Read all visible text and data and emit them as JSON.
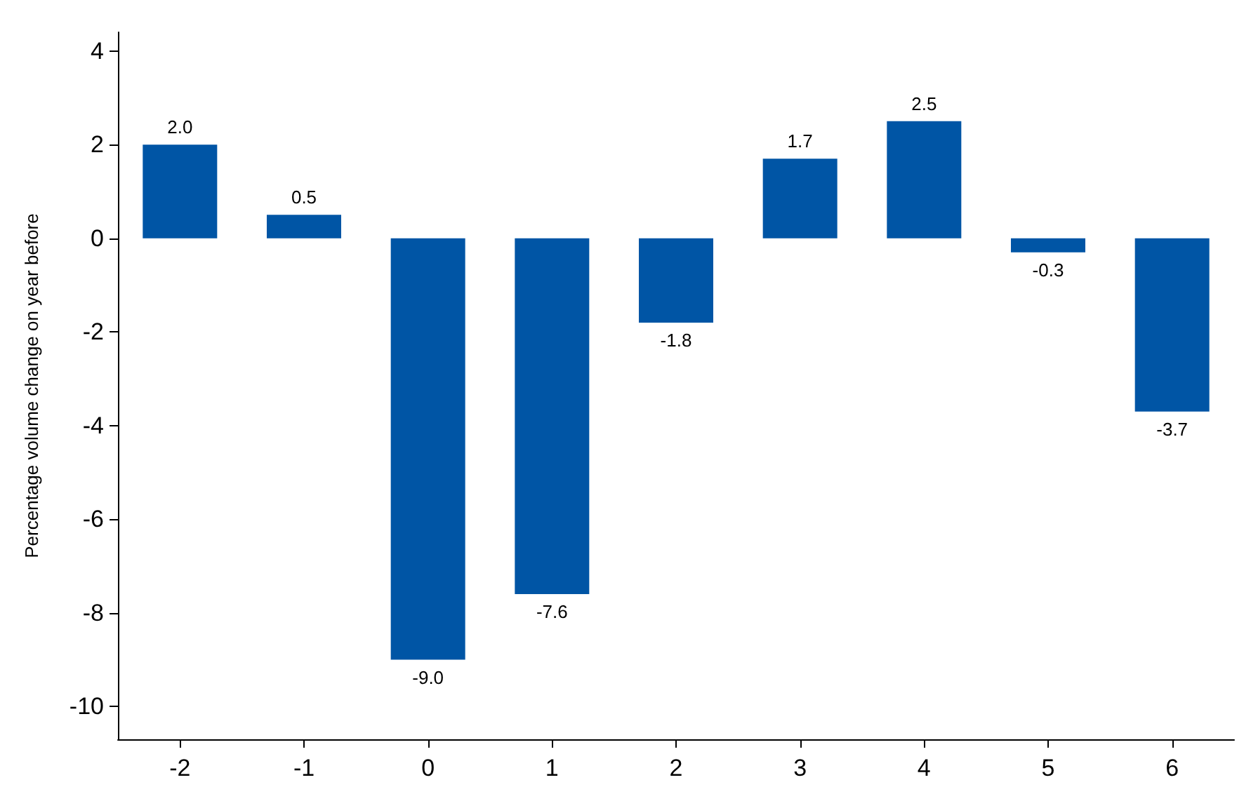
{
  "chart_data": {
    "type": "bar",
    "ylabel": "Percentage volume change on year before",
    "categories": [
      "-2",
      "-1",
      "0",
      "1",
      "2",
      "3",
      "4",
      "5",
      "6"
    ],
    "values": [
      2.0,
      0.5,
      -9.0,
      -7.6,
      -1.8,
      1.7,
      2.5,
      -0.3,
      -3.7
    ],
    "value_labels": [
      "2.0",
      "0.5",
      "-9.0",
      "-7.6",
      "-1.8",
      "1.7",
      "2.5",
      "-0.3",
      "-3.7"
    ],
    "color": "#0055a5",
    "ylim": [
      -10.7,
      4.4
    ],
    "yticks": [
      -10,
      -8,
      -6,
      -4,
      -2,
      0,
      2,
      4
    ],
    "grid": false
  }
}
